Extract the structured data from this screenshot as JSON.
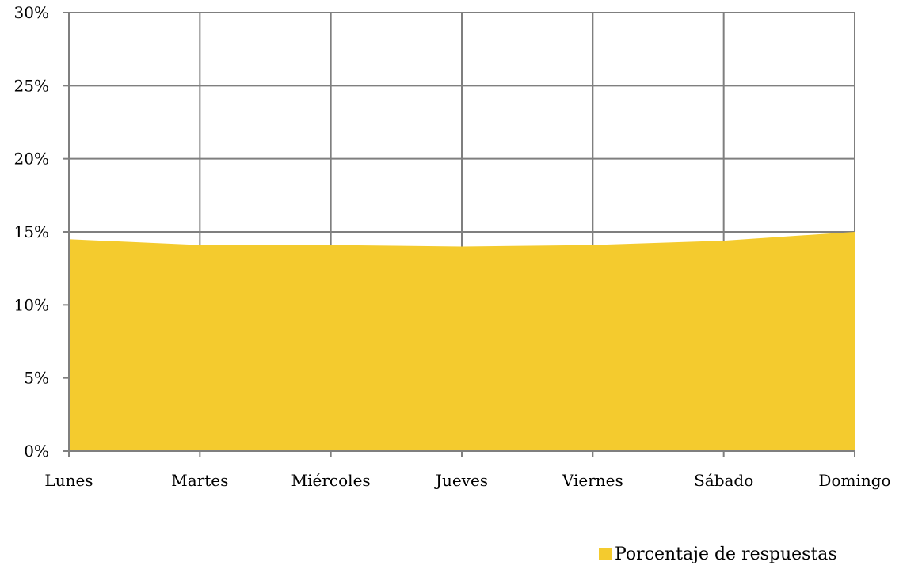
{
  "chart_data": {
    "type": "area",
    "title": "",
    "xlabel": "",
    "ylabel": "",
    "categories": [
      "Lunes",
      "Martes",
      "Miércoles",
      "Jueves",
      "Viernes",
      "Sábado",
      "Domingo"
    ],
    "series": [
      {
        "name": "Porcentaje de respuestas",
        "values": [
          14.5,
          14.1,
          14.1,
          14.0,
          14.1,
          14.4,
          15.0
        ],
        "color": "#F4CB2E"
      }
    ],
    "ylim": [
      0,
      30
    ],
    "yticks": [
      0,
      5,
      10,
      15,
      20,
      25,
      30
    ],
    "ytick_labels": [
      "0%",
      "5%",
      "10%",
      "15%",
      "20%",
      "25%",
      "30%"
    ],
    "grid": true,
    "grid_color": "#7f7f7f",
    "legend_position": "bottom-right"
  }
}
